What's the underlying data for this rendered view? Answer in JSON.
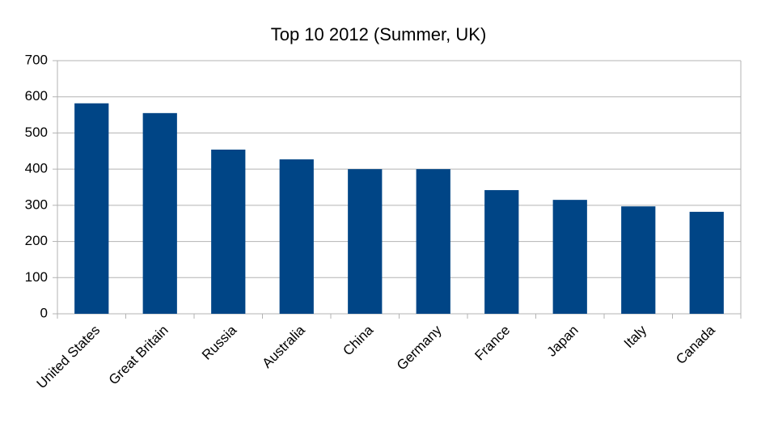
{
  "chart_data": {
    "type": "bar",
    "title": "Top 10 2012 (Summer, UK)",
    "categories": [
      "United States",
      "Great Britain",
      "Russia",
      "Australia",
      "China",
      "Germany",
      "France",
      "Japan",
      "Italy",
      "Canada"
    ],
    "values": [
      582,
      555,
      454,
      427,
      400,
      400,
      342,
      315,
      297,
      282
    ],
    "color": "#004586",
    "ylim": [
      0,
      700
    ],
    "yticks": [
      0,
      100,
      200,
      300,
      400,
      500,
      600,
      700
    ],
    "grid": true
  }
}
